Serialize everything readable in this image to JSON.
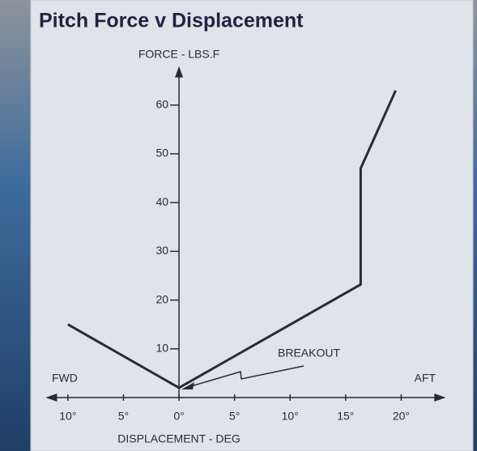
{
  "chart_data": {
    "type": "line",
    "title": "Pitch Force v Displacement",
    "y_label": "FORCE - LBS.F",
    "x_label": "DISPLACEMENT - DEG",
    "annotations": [
      "BREAKOUT",
      "FWD",
      "AFT"
    ],
    "x": [
      -10,
      0,
      16.35,
      16.35,
      19.5
    ],
    "series": [
      {
        "values": [
          15,
          2,
          23.2,
          47,
          63
        ],
        "color": "#2a2a35"
      }
    ],
    "xlim": [
      -12,
      24
    ],
    "ylim": [
      0,
      68
    ],
    "xticks": [
      {
        "value": -10,
        "label": "10°"
      },
      {
        "value": -5,
        "label": "5°"
      },
      {
        "value": 0,
        "label": "0°"
      },
      {
        "value": 5,
        "label": "5°"
      },
      {
        "value": 10,
        "label": "10°"
      },
      {
        "value": 15,
        "label": "15°"
      },
      {
        "value": 20,
        "label": "20°"
      }
    ],
    "yticks": [
      10,
      20,
      30,
      40,
      50,
      60
    ]
  }
}
